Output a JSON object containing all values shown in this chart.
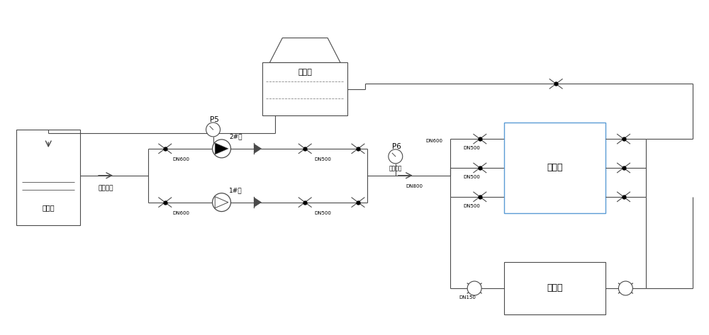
{
  "line_color": "#4a4a4a",
  "blue_line_color": "#5b9bd5",
  "fig_width": 10.0,
  "fig_height": 4.73,
  "title_cooling": "冷却塔",
  "label_qingshuchi": "清水池",
  "label_ruguandao": "接入管道",
  "label_pump2": "2#泵",
  "label_pump1": "1#泵",
  "label_p5": "P5",
  "label_p6": "P6",
  "label_chushuzonguan": "出水总管",
  "label_chulengta": "初冷塔",
  "label_zhonglengta": "终冷塔",
  "label_dn600": "DN600",
  "label_dn500": "DN500",
  "label_dn800": "DN800",
  "label_dn150": "DN150"
}
